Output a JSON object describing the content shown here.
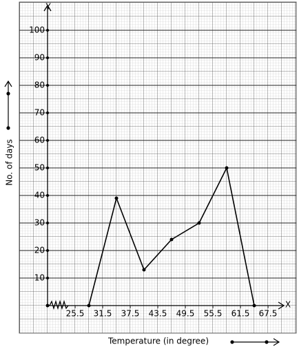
{
  "chart_data": {
    "type": "line",
    "x_label": "Temperature (in degree)",
    "y_label": "No. of days",
    "x_axis_name": "X",
    "y_axis_name": "Y",
    "x": [
      28.5,
      34.5,
      40.5,
      46.5,
      52.5,
      58.5,
      64.5
    ],
    "series": [
      {
        "color": "#000000",
        "values": [
          0,
          39,
          13,
          24,
          30,
          50,
          0
        ]
      }
    ],
    "xlim": [
      19.5,
      70.5
    ],
    "xticks": [
      25.5,
      31.5,
      37.5,
      43.5,
      49.5,
      55.5,
      61.5,
      67.5
    ],
    "ylim": [
      0,
      108
    ],
    "yticks": [
      10,
      20,
      30,
      40,
      50,
      60,
      70,
      80,
      90,
      100
    ],
    "grid": true
  }
}
